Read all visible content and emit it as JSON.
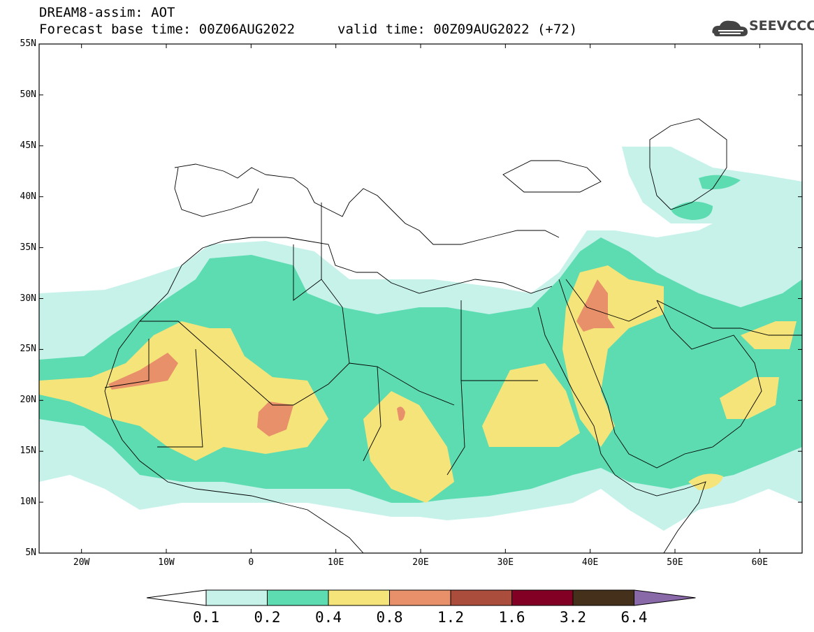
{
  "header": {
    "line1": "DREAM8-assim: AOT",
    "line2_left": "Forecast base time: 00Z06AUG2022",
    "line2_right": "valid time: 00Z09AUG2022 (+72)",
    "logo_text": "SEEVCCC"
  },
  "map": {
    "lon_range": [
      -25,
      65
    ],
    "lat_range": [
      5,
      55
    ],
    "lat_ticks": [
      "55N",
      "50N",
      "45N",
      "40N",
      "35N",
      "30N",
      "25N",
      "20N",
      "15N",
      "10N",
      "5N"
    ],
    "lon_ticks": [
      "20W",
      "10W",
      "0",
      "10E",
      "20E",
      "30E",
      "40E",
      "50E",
      "60E"
    ]
  },
  "colorbar": {
    "labels": [
      "0.1",
      "0.2",
      "0.4",
      "0.8",
      "1.2",
      "1.6",
      "3.2",
      "6.4"
    ],
    "colors": [
      "#ffffff",
      "#c6f2ea",
      "#5cdcb0",
      "#f5e47a",
      "#e8906a",
      "#aa4d3c",
      "#820024",
      "#45301c",
      "#8a69a8"
    ]
  }
}
